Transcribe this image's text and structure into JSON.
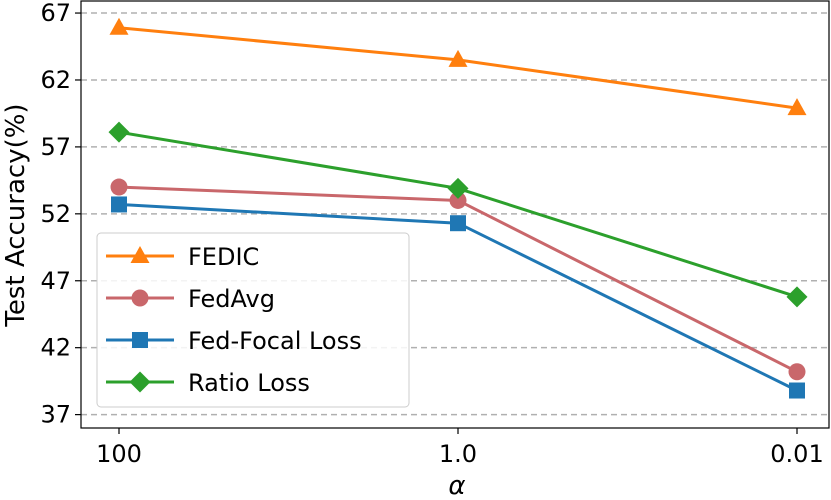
{
  "chart_data": {
    "type": "line",
    "title": "",
    "xlabel": "α",
    "ylabel": "Test Accuracy(%)",
    "categories": [
      "100",
      "1.0",
      "0.01"
    ],
    "yticks": [
      37,
      42,
      47,
      52,
      57,
      62,
      67
    ],
    "ylim": [
      36,
      67.9
    ],
    "grid": "horizontal dashed",
    "legend_position": "lower-left",
    "series": [
      {
        "name": "FEDIC",
        "values": [
          65.9,
          63.5,
          59.9
        ],
        "color": "#ff7f0e",
        "marker": "triangle"
      },
      {
        "name": "FedAvg",
        "values": [
          54.0,
          53.0,
          40.2
        ],
        "color": "#c9676b",
        "marker": "circle"
      },
      {
        "name": "Fed-Focal Loss",
        "values": [
          52.7,
          51.3,
          38.8
        ],
        "color": "#1f77b4",
        "marker": "square"
      },
      {
        "name": "Ratio Loss",
        "values": [
          58.1,
          53.9,
          45.8
        ],
        "color": "#2ca02c",
        "marker": "diamond"
      }
    ]
  }
}
